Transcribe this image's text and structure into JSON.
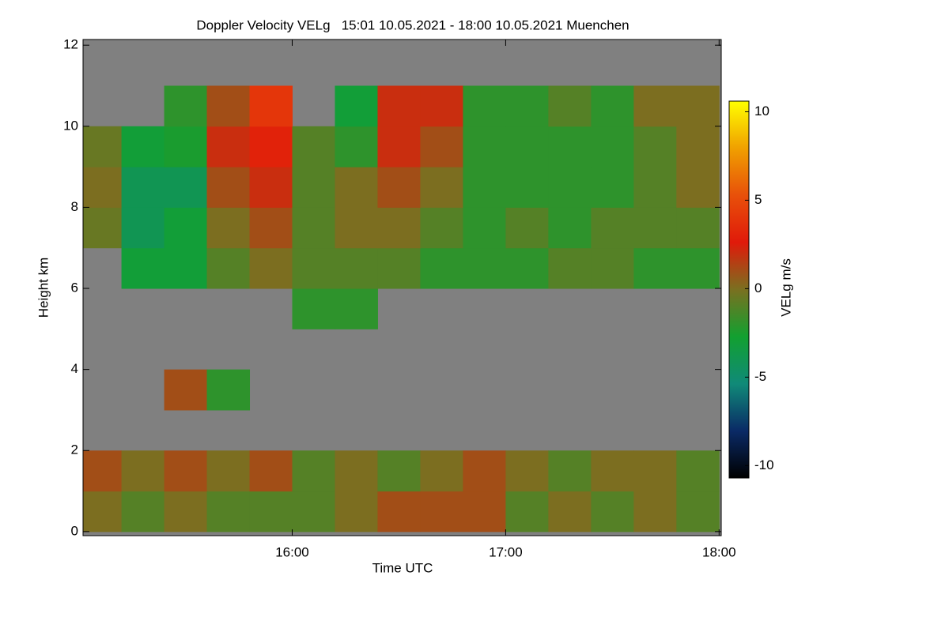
{
  "chart_data": {
    "type": "heatmap",
    "title": "Doppler Velocity VELg   15:01 10.05.2021 - 18:00 10.05.2021 Muenchen",
    "xlabel": "Time UTC",
    "ylabel": "Height km",
    "colorbar_label": "VELg m/s",
    "x": [
      15.1,
      15.3,
      15.5,
      15.7,
      15.9,
      16.1,
      16.3,
      16.5,
      16.7,
      16.9,
      17.1,
      17.3,
      17.5,
      17.7,
      17.9
    ],
    "y": [
      0.5,
      1.5,
      2.5,
      3.5,
      4.5,
      5.5,
      6.5,
      7.5,
      8.5,
      9.5,
      10.5
    ],
    "z": [
      [
        0,
        -1,
        0,
        -1,
        -1,
        -1,
        0,
        1,
        1,
        1,
        -1,
        0,
        -1,
        0,
        -1
      ],
      [
        1,
        0,
        1,
        0,
        1,
        -1,
        0,
        -1,
        0,
        1,
        0,
        -1,
        0,
        0,
        -1
      ],
      [
        null,
        null,
        null,
        null,
        null,
        null,
        null,
        null,
        null,
        null,
        null,
        null,
        null,
        null,
        null
      ],
      [
        null,
        null,
        1,
        -2,
        null,
        null,
        null,
        null,
        null,
        null,
        null,
        null,
        null,
        null,
        null
      ],
      [
        null,
        null,
        null,
        null,
        null,
        null,
        null,
        null,
        null,
        null,
        null,
        null,
        null,
        null,
        null
      ],
      [
        null,
        null,
        null,
        null,
        null,
        -2,
        -2,
        null,
        null,
        null,
        null,
        null,
        null,
        null,
        null
      ],
      [
        null,
        -3,
        -3,
        -1,
        0,
        -1,
        -1,
        -1,
        -2,
        -2,
        -2,
        -1,
        -1,
        -2,
        -2
      ],
      [
        -0.5,
        -4,
        -3,
        0,
        1,
        -1,
        0,
        0,
        -1,
        -2,
        -1,
        -2,
        -1,
        -1,
        -1
      ],
      [
        0,
        -4,
        -4,
        1,
        2,
        -1,
        0,
        1,
        0,
        -2,
        -2,
        -2,
        -2,
        -1,
        0
      ],
      [
        -0.5,
        -3,
        -2.5,
        2,
        3,
        -1,
        -2,
        2,
        1,
        -2,
        -2,
        -2,
        -2,
        -1,
        0
      ],
      [
        null,
        null,
        -2,
        1,
        4,
        null,
        -3,
        2,
        2,
        -2,
        -2,
        -1,
        -2,
        0,
        0
      ]
    ],
    "xlim": [
      15.02,
      18.01
    ],
    "xticks": [
      {
        "value": 16,
        "label": "16:00"
      },
      {
        "value": 17,
        "label": "17:00"
      },
      {
        "value": 18,
        "label": "18:00"
      }
    ],
    "ylim": [
      -0.1,
      12.14
    ],
    "yticks": [
      0,
      2,
      4,
      6,
      8,
      10,
      12
    ],
    "clim": [
      -10.7,
      10.6
    ],
    "cticks": [
      -10,
      -5,
      0,
      5,
      10
    ],
    "colorscale": [
      "#000000",
      "#0a2a66",
      "#108a78",
      "#12a030",
      "#7a7020",
      "#e01a0a",
      "#e8500a",
      "#f0a000",
      "#ffff00"
    ],
    "background": "#808080"
  }
}
